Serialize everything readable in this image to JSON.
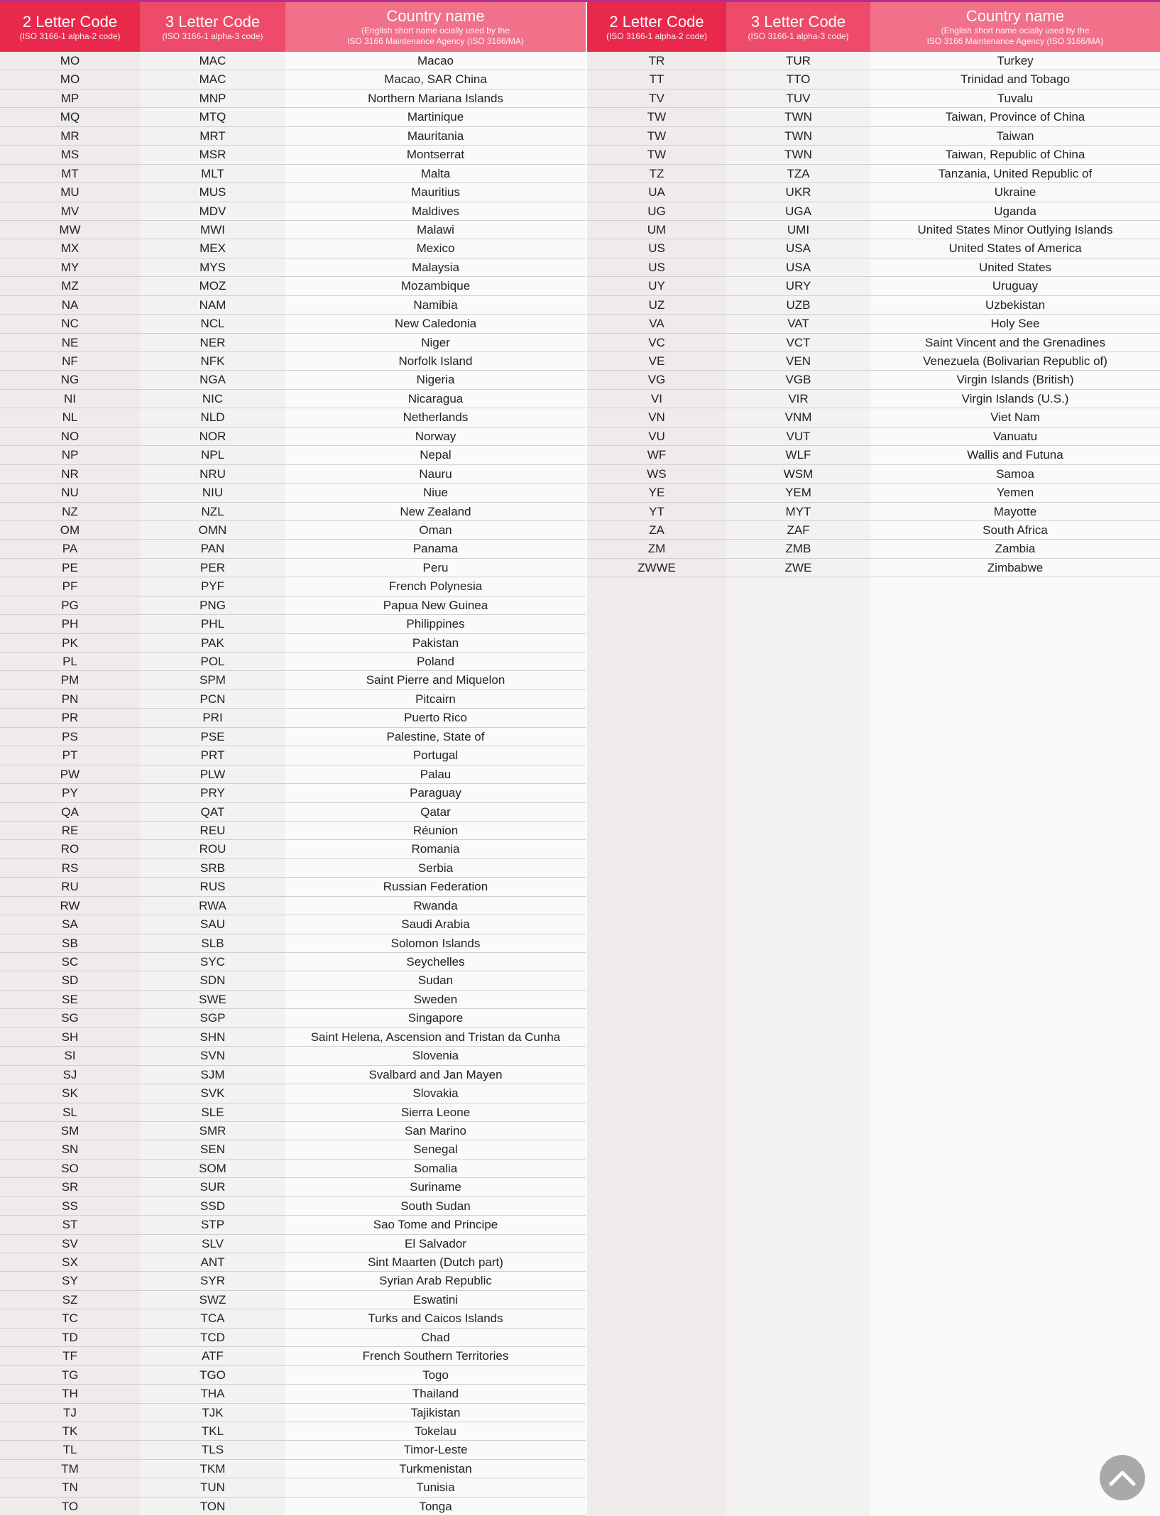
{
  "header": {
    "col1_title": "2 Letter Code",
    "col1_sub": "(ISO 3166-1 alpha-2 code)",
    "col2_title": "3 Letter Code",
    "col2_sub": "(ISO 3166-1 alpha-3 code)",
    "col3_title": "Country name",
    "col3_sub1": "(English short name ocially used by the",
    "col3_sub2": "ISO 3166 Maintenance Agency (ISO 3166/MA)"
  },
  "colors": {
    "header_col1": "#e8294b",
    "header_col2": "#ee4a6a",
    "header_col3": "#f1708a",
    "accent_line": "#b2308f"
  },
  "scroll_top_icon": "chevron-up-icon",
  "left_rows": [
    [
      "MO",
      "MAC",
      "Macao"
    ],
    [
      "MO",
      "MAC",
      "Macao, SAR China"
    ],
    [
      "MP",
      "MNP",
      "Northern Mariana Islands"
    ],
    [
      "MQ",
      "MTQ",
      "Martinique"
    ],
    [
      "MR",
      "MRT",
      "Mauritania"
    ],
    [
      "MS",
      "MSR",
      "Montserrat"
    ],
    [
      "MT",
      "MLT",
      "Malta"
    ],
    [
      "MU",
      "MUS",
      "Mauritius"
    ],
    [
      "MV",
      "MDV",
      "Maldives"
    ],
    [
      "MW",
      "MWI",
      "Malawi"
    ],
    [
      "MX",
      "MEX",
      "Mexico"
    ],
    [
      "MY",
      "MYS",
      "Malaysia"
    ],
    [
      "MZ",
      "MOZ",
      "Mozambique"
    ],
    [
      "NA",
      "NAM",
      "Namibia"
    ],
    [
      "NC",
      "NCL",
      "New Caledonia"
    ],
    [
      "NE",
      "NER",
      "Niger"
    ],
    [
      "NF",
      "NFK",
      "Norfolk Island"
    ],
    [
      "NG",
      "NGA",
      "Nigeria"
    ],
    [
      "NI",
      "NIC",
      "Nicaragua"
    ],
    [
      "NL",
      "NLD",
      "Netherlands"
    ],
    [
      "NO",
      "NOR",
      "Norway"
    ],
    [
      "NP",
      "NPL",
      "Nepal"
    ],
    [
      "NR",
      "NRU",
      "Nauru"
    ],
    [
      "NU",
      "NIU",
      "Niue"
    ],
    [
      "NZ",
      "NZL",
      "New Zealand"
    ],
    [
      "OM",
      "OMN",
      "Oman"
    ],
    [
      "PA",
      "PAN",
      "Panama"
    ],
    [
      "PE",
      "PER",
      "Peru"
    ],
    [
      "PF",
      "PYF",
      "French Polynesia"
    ],
    [
      "PG",
      "PNG",
      "Papua New Guinea"
    ],
    [
      "PH",
      "PHL",
      "Philippines"
    ],
    [
      "PK",
      "PAK",
      "Pakistan"
    ],
    [
      "PL",
      "POL",
      "Poland"
    ],
    [
      "PM",
      "SPM",
      "Saint Pierre and Miquelon"
    ],
    [
      "PN",
      "PCN",
      "Pitcairn"
    ],
    [
      "PR",
      "PRI",
      "Puerto Rico"
    ],
    [
      "PS",
      "PSE",
      "Palestine, State of"
    ],
    [
      "PT",
      "PRT",
      "Portugal"
    ],
    [
      "PW",
      "PLW",
      "Palau"
    ],
    [
      "PY",
      "PRY",
      "Paraguay"
    ],
    [
      "QA",
      "QAT",
      "Qatar"
    ],
    [
      "RE",
      "REU",
      "Réunion"
    ],
    [
      "RO",
      "ROU",
      "Romania"
    ],
    [
      "RS",
      "SRB",
      "Serbia"
    ],
    [
      "RU",
      "RUS",
      "Russian Federation"
    ],
    [
      "RW",
      "RWA",
      "Rwanda"
    ],
    [
      "SA",
      "SAU",
      "Saudi Arabia"
    ],
    [
      "SB",
      "SLB",
      "Solomon Islands"
    ],
    [
      "SC",
      "SYC",
      "Seychelles"
    ],
    [
      "SD",
      "SDN",
      "Sudan"
    ],
    [
      "SE",
      "SWE",
      "Sweden"
    ],
    [
      "SG",
      "SGP",
      "Singapore"
    ],
    [
      "SH",
      "SHN",
      "Saint Helena, Ascension and Tristan da Cunha"
    ],
    [
      "SI",
      "SVN",
      "Slovenia"
    ],
    [
      "SJ",
      "SJM",
      "Svalbard and Jan Mayen"
    ],
    [
      "SK",
      "SVK",
      "Slovakia"
    ],
    [
      "SL",
      "SLE",
      "Sierra Leone"
    ],
    [
      "SM",
      "SMR",
      "San Marino"
    ],
    [
      "SN",
      "SEN",
      "Senegal"
    ],
    [
      "SO",
      "SOM",
      "Somalia"
    ],
    [
      "SR",
      "SUR",
      "Suriname"
    ],
    [
      "SS",
      "SSD",
      "South Sudan"
    ],
    [
      "ST",
      "STP",
      "Sao Tome and Principe"
    ],
    [
      "SV",
      "SLV",
      "El Salvador"
    ],
    [
      "SX",
      "ANT",
      "Sint Maarten (Dutch part)"
    ],
    [
      "SY",
      "SYR",
      "Syrian Arab Republic"
    ],
    [
      "SZ",
      "SWZ",
      "Eswatini"
    ],
    [
      "TC",
      "TCA",
      "Turks and Caicos Islands"
    ],
    [
      "TD",
      "TCD",
      "Chad"
    ],
    [
      "TF",
      "ATF",
      "French Southern Territories"
    ],
    [
      "TG",
      "TGO",
      "Togo"
    ],
    [
      "TH",
      "THA",
      "Thailand"
    ],
    [
      "TJ",
      "TJK",
      "Tajikistan"
    ],
    [
      "TK",
      "TKL",
      "Tokelau"
    ],
    [
      "TL",
      "TLS",
      "Timor-Leste"
    ],
    [
      "TM",
      "TKM",
      "Turkmenistan"
    ],
    [
      "TN",
      "TUN",
      "Tunisia"
    ],
    [
      "TO",
      "TON",
      "Tonga"
    ]
  ],
  "right_rows": [
    [
      "TR",
      "TUR",
      "Turkey"
    ],
    [
      "TT",
      "TTO",
      "Trinidad and Tobago"
    ],
    [
      "TV",
      "TUV",
      "Tuvalu"
    ],
    [
      "TW",
      "TWN",
      "Taiwan, Province of China"
    ],
    [
      "TW",
      "TWN",
      "Taiwan"
    ],
    [
      "TW",
      "TWN",
      "Taiwan, Republic of China"
    ],
    [
      "TZ",
      "TZA",
      "Tanzania, United Republic of"
    ],
    [
      "UA",
      "UKR",
      "Ukraine"
    ],
    [
      "UG",
      "UGA",
      "Uganda"
    ],
    [
      "UM",
      "UMI",
      "United States Minor Outlying Islands"
    ],
    [
      "US",
      "USA",
      "United States of America"
    ],
    [
      "US",
      "USA",
      "United States"
    ],
    [
      "UY",
      "URY",
      "Uruguay"
    ],
    [
      "UZ",
      "UZB",
      "Uzbekistan"
    ],
    [
      "VA",
      "VAT",
      "Holy See"
    ],
    [
      "VC",
      "VCT",
      "Saint Vincent and the Grenadines"
    ],
    [
      "VE",
      "VEN",
      "Venezuela (Bolivarian Republic of)"
    ],
    [
      "VG",
      "VGB",
      "Virgin Islands (British)"
    ],
    [
      "VI",
      "VIR",
      "Virgin Islands (U.S.)"
    ],
    [
      "VN",
      "VNM",
      "Viet Nam"
    ],
    [
      "VU",
      "VUT",
      "Vanuatu"
    ],
    [
      "WF",
      "WLF",
      "Wallis and Futuna"
    ],
    [
      "WS",
      "WSM",
      "Samoa"
    ],
    [
      "YE",
      "YEM",
      "Yemen"
    ],
    [
      "YT",
      "MYT",
      "Mayotte"
    ],
    [
      "ZA",
      "ZAF",
      "South Africa"
    ],
    [
      "ZM",
      "ZMB",
      "Zambia"
    ],
    [
      "ZWWE",
      "ZWE",
      "Zimbabwe"
    ]
  ]
}
